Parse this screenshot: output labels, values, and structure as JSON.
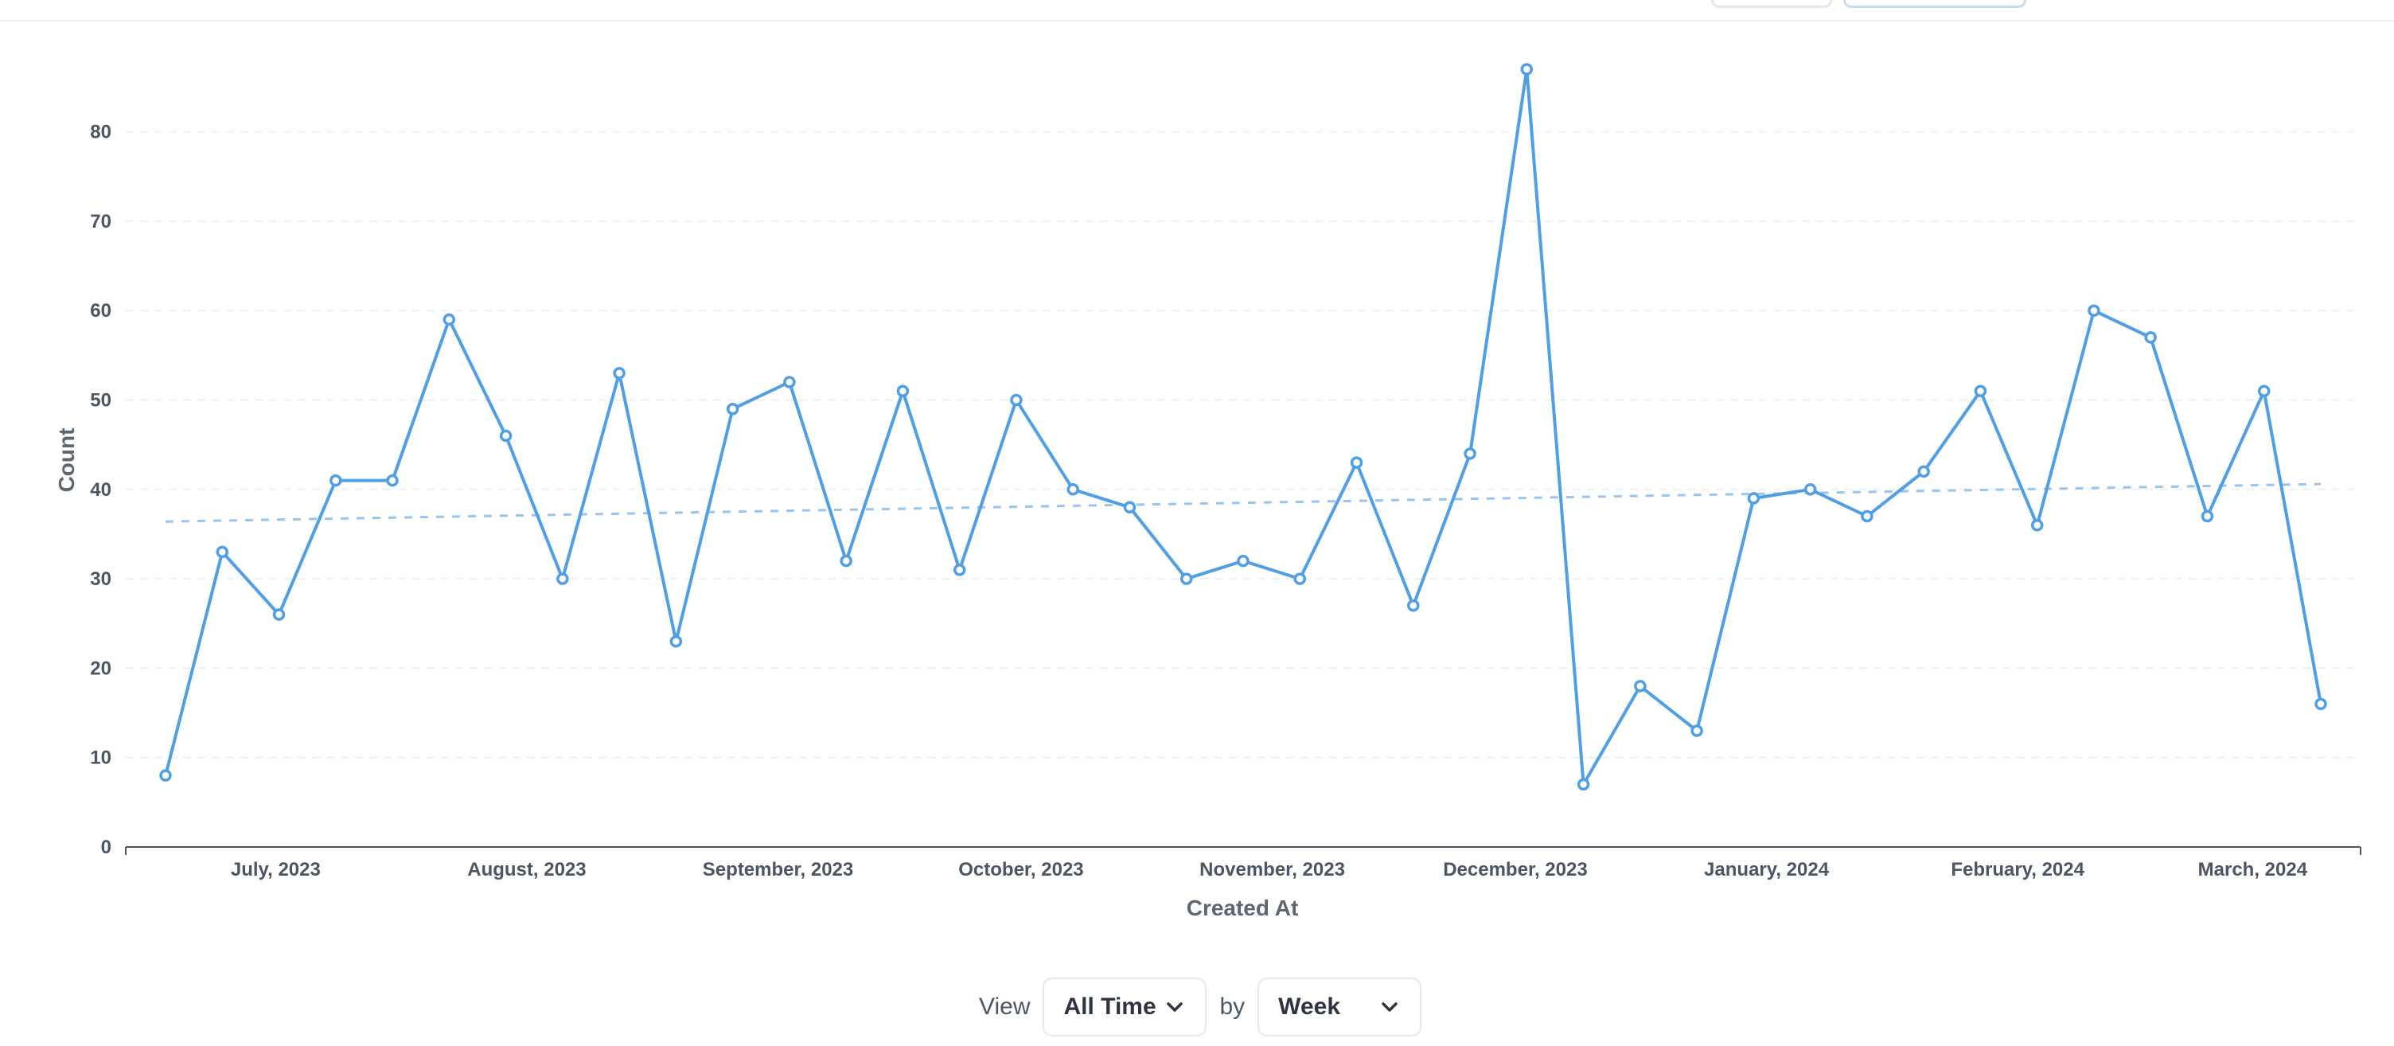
{
  "chart_data": {
    "type": "line",
    "ylabel": "Count",
    "xlabel": "Created At",
    "ylim": [
      0,
      90
    ],
    "yticks": [
      0,
      10,
      20,
      30,
      40,
      50,
      60,
      70,
      80
    ],
    "x_tick_labels": [
      "July, 2023",
      "August, 2023",
      "September, 2023",
      "October, 2023",
      "November, 2023",
      "December, 2023",
      "January, 2024",
      "February, 2024",
      "March, 2024"
    ],
    "x": [
      "2023-06-18",
      "2023-06-25",
      "2023-07-02",
      "2023-07-09",
      "2023-07-16",
      "2023-07-23",
      "2023-07-30",
      "2023-08-06",
      "2023-08-13",
      "2023-08-20",
      "2023-08-27",
      "2023-09-03",
      "2023-09-10",
      "2023-09-17",
      "2023-09-24",
      "2023-10-01",
      "2023-10-08",
      "2023-10-15",
      "2023-10-22",
      "2023-10-29",
      "2023-11-05",
      "2023-11-12",
      "2023-11-19",
      "2023-11-26",
      "2023-12-03",
      "2023-12-10",
      "2023-12-17",
      "2023-12-24",
      "2023-12-31",
      "2024-01-07",
      "2024-01-14",
      "2024-01-21",
      "2024-01-28",
      "2024-02-04",
      "2024-02-11",
      "2024-02-18",
      "2024-02-25",
      "2024-03-03",
      "2024-03-10"
    ],
    "series": [
      {
        "values": [
          8,
          33,
          26,
          41,
          41,
          59,
          46,
          30,
          53,
          23,
          49,
          52,
          32,
          51,
          31,
          50,
          40,
          38,
          30,
          32,
          30,
          43,
          27,
          44,
          87,
          7,
          18,
          13,
          39,
          40,
          37,
          42,
          51,
          36,
          60,
          57,
          37,
          51,
          16
        ],
        "color": "#509ee3"
      }
    ],
    "trend_line": {
      "start": 36.4,
      "end": 40.6,
      "color": "#98c4ef",
      "style": "dashed"
    },
    "grid": true,
    "legend": "none"
  },
  "controls": {
    "view_label": "View",
    "time_value": "All Time",
    "by_label": "by",
    "unit_value": "Week"
  }
}
